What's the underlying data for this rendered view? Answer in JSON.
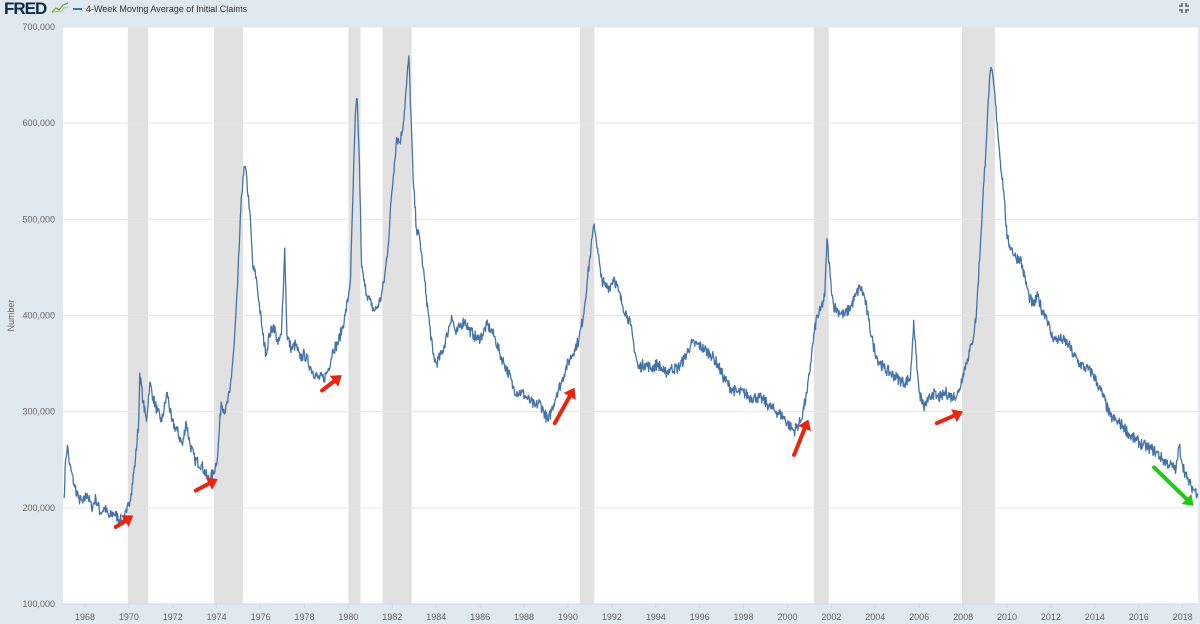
{
  "header": {
    "logo": "FRED",
    "legend_label": "4-Week Moving Average of Initial Claims"
  },
  "colors": {
    "series": "#4572a7",
    "recession": "#e1e1e1",
    "plot_bg": "#ffffff",
    "page_bg": "#e1e9f0",
    "arrow_red": "#e8260f",
    "arrow_green": "#22c81a"
  },
  "icons": {
    "fullscreen": "fullscreen-toggle-icon",
    "logo_graph": "logo-graph-icon"
  },
  "chart_data": {
    "type": "line",
    "title": "",
    "xlabel": "",
    "ylabel": "Number",
    "xlim": [
      1967.0,
      2018.7
    ],
    "ylim": [
      100000,
      700000
    ],
    "y_ticks": [
      100000,
      200000,
      300000,
      400000,
      500000,
      600000,
      700000
    ],
    "y_tick_labels": [
      "100,000",
      "200,000",
      "300,000",
      "400,000",
      "500,000",
      "600,000",
      "700,000"
    ],
    "x_ticks": [
      1968,
      1970,
      1972,
      1974,
      1976,
      1978,
      1980,
      1982,
      1984,
      1986,
      1988,
      1990,
      1992,
      1994,
      1996,
      1998,
      2000,
      2002,
      2004,
      2006,
      2008,
      2010,
      2012,
      2014,
      2016,
      2018
    ],
    "x_tick_labels": [
      "1968",
      "1970",
      "1972",
      "1974",
      "1976",
      "1978",
      "1980",
      "1982",
      "1984",
      "1986",
      "1988",
      "1990",
      "1992",
      "1994",
      "1996",
      "1998",
      "2000",
      "2002",
      "2004",
      "2006",
      "2008",
      "2010",
      "2012",
      "2014",
      "2016",
      "2018"
    ],
    "grid": "horizontal",
    "recessions": [
      [
        1969.95,
        1970.88
      ],
      [
        1973.88,
        1975.2
      ],
      [
        1980.0,
        1980.55
      ],
      [
        1981.55,
        1982.88
      ],
      [
        1990.55,
        1991.2
      ],
      [
        2001.2,
        2001.88
      ],
      [
        2007.95,
        2009.45
      ]
    ],
    "series": [
      {
        "values": [
          [
            1967.05,
            210000
          ],
          [
            1967.12,
            250000
          ],
          [
            1967.2,
            265000
          ],
          [
            1967.3,
            245000
          ],
          [
            1967.5,
            225000
          ],
          [
            1967.7,
            210000
          ],
          [
            1967.9,
            205000
          ],
          [
            1968.1,
            215000
          ],
          [
            1968.3,
            200000
          ],
          [
            1968.5,
            210000
          ],
          [
            1968.7,
            195000
          ],
          [
            1968.9,
            200000
          ],
          [
            1969.1,
            190000
          ],
          [
            1969.3,
            195000
          ],
          [
            1969.5,
            190000
          ],
          [
            1969.7,
            185000
          ],
          [
            1969.9,
            195000
          ],
          [
            1970.1,
            215000
          ],
          [
            1970.3,
            250000
          ],
          [
            1970.45,
            290000
          ],
          [
            1970.5,
            340000
          ],
          [
            1970.65,
            310000
          ],
          [
            1970.8,
            290000
          ],
          [
            1970.95,
            330000
          ],
          [
            1971.1,
            315000
          ],
          [
            1971.3,
            300000
          ],
          [
            1971.5,
            290000
          ],
          [
            1971.75,
            320000
          ],
          [
            1971.95,
            290000
          ],
          [
            1972.2,
            280000
          ],
          [
            1972.45,
            265000
          ],
          [
            1972.6,
            290000
          ],
          [
            1972.8,
            265000
          ],
          [
            1973.0,
            250000
          ],
          [
            1973.3,
            245000
          ],
          [
            1973.6,
            230000
          ],
          [
            1973.85,
            235000
          ],
          [
            1974.05,
            255000
          ],
          [
            1974.2,
            310000
          ],
          [
            1974.4,
            300000
          ],
          [
            1974.6,
            320000
          ],
          [
            1974.8,
            370000
          ],
          [
            1974.95,
            430000
          ],
          [
            1975.1,
            510000
          ],
          [
            1975.2,
            545000
          ],
          [
            1975.3,
            555000
          ],
          [
            1975.5,
            510000
          ],
          [
            1975.65,
            450000
          ],
          [
            1975.8,
            440000
          ],
          [
            1975.95,
            410000
          ],
          [
            1976.1,
            380000
          ],
          [
            1976.25,
            360000
          ],
          [
            1976.4,
            380000
          ],
          [
            1976.6,
            390000
          ],
          [
            1976.8,
            370000
          ],
          [
            1976.95,
            380000
          ],
          [
            1977.1,
            470000
          ],
          [
            1977.2,
            380000
          ],
          [
            1977.4,
            365000
          ],
          [
            1977.6,
            370000
          ],
          [
            1977.8,
            355000
          ],
          [
            1978.0,
            360000
          ],
          [
            1978.3,
            345000
          ],
          [
            1978.6,
            335000
          ],
          [
            1978.9,
            335000
          ],
          [
            1979.1,
            345000
          ],
          [
            1979.3,
            365000
          ],
          [
            1979.5,
            370000
          ],
          [
            1979.7,
            385000
          ],
          [
            1979.85,
            400000
          ],
          [
            1980.0,
            420000
          ],
          [
            1980.1,
            440000
          ],
          [
            1980.2,
            520000
          ],
          [
            1980.32,
            610000
          ],
          [
            1980.4,
            625000
          ],
          [
            1980.5,
            560000
          ],
          [
            1980.6,
            450000
          ],
          [
            1980.75,
            430000
          ],
          [
            1980.9,
            420000
          ],
          [
            1981.05,
            410000
          ],
          [
            1981.2,
            405000
          ],
          [
            1981.35,
            410000
          ],
          [
            1981.5,
            420000
          ],
          [
            1981.65,
            440000
          ],
          [
            1981.8,
            470000
          ],
          [
            1981.95,
            520000
          ],
          [
            1982.1,
            560000
          ],
          [
            1982.2,
            585000
          ],
          [
            1982.35,
            580000
          ],
          [
            1982.5,
            600000
          ],
          [
            1982.65,
            640000
          ],
          [
            1982.75,
            670000
          ],
          [
            1982.85,
            610000
          ],
          [
            1982.95,
            540000
          ],
          [
            1983.1,
            490000
          ],
          [
            1983.25,
            480000
          ],
          [
            1983.4,
            450000
          ],
          [
            1983.55,
            420000
          ],
          [
            1983.7,
            390000
          ],
          [
            1983.85,
            360000
          ],
          [
            1984.0,
            350000
          ],
          [
            1984.25,
            360000
          ],
          [
            1984.5,
            380000
          ],
          [
            1984.7,
            400000
          ],
          [
            1984.9,
            380000
          ],
          [
            1985.1,
            390000
          ],
          [
            1985.3,
            395000
          ],
          [
            1985.5,
            385000
          ],
          [
            1985.7,
            380000
          ],
          [
            1985.9,
            375000
          ],
          [
            1986.1,
            380000
          ],
          [
            1986.3,
            390000
          ],
          [
            1986.5,
            385000
          ],
          [
            1986.7,
            375000
          ],
          [
            1986.9,
            360000
          ],
          [
            1987.1,
            350000
          ],
          [
            1987.3,
            340000
          ],
          [
            1987.5,
            325000
          ],
          [
            1987.7,
            320000
          ],
          [
            1987.9,
            320000
          ],
          [
            1988.1,
            315000
          ],
          [
            1988.3,
            310000
          ],
          [
            1988.5,
            305000
          ],
          [
            1988.7,
            310000
          ],
          [
            1988.9,
            300000
          ],
          [
            1989.1,
            290000
          ],
          [
            1989.3,
            305000
          ],
          [
            1989.5,
            320000
          ],
          [
            1989.7,
            330000
          ],
          [
            1989.9,
            345000
          ],
          [
            1990.1,
            355000
          ],
          [
            1990.3,
            365000
          ],
          [
            1990.5,
            375000
          ],
          [
            1990.7,
            400000
          ],
          [
            1990.9,
            440000
          ],
          [
            1991.05,
            470000
          ],
          [
            1991.2,
            495000
          ],
          [
            1991.35,
            470000
          ],
          [
            1991.5,
            440000
          ],
          [
            1991.7,
            430000
          ],
          [
            1991.9,
            430000
          ],
          [
            1992.1,
            440000
          ],
          [
            1992.3,
            425000
          ],
          [
            1992.5,
            410000
          ],
          [
            1992.7,
            400000
          ],
          [
            1992.85,
            390000
          ],
          [
            1993.0,
            370000
          ],
          [
            1993.2,
            345000
          ],
          [
            1993.5,
            350000
          ],
          [
            1993.8,
            345000
          ],
          [
            1994.1,
            350000
          ],
          [
            1994.4,
            340000
          ],
          [
            1994.7,
            345000
          ],
          [
            1995.0,
            345000
          ],
          [
            1995.3,
            355000
          ],
          [
            1995.6,
            370000
          ],
          [
            1995.9,
            370000
          ],
          [
            1996.2,
            365000
          ],
          [
            1996.5,
            360000
          ],
          [
            1996.8,
            350000
          ],
          [
            1997.1,
            335000
          ],
          [
            1997.4,
            325000
          ],
          [
            1997.7,
            320000
          ],
          [
            1998.0,
            320000
          ],
          [
            1998.3,
            315000
          ],
          [
            1998.6,
            315000
          ],
          [
            1998.9,
            312000
          ],
          [
            1999.2,
            305000
          ],
          [
            1999.5,
            300000
          ],
          [
            1999.8,
            295000
          ],
          [
            2000.1,
            285000
          ],
          [
            2000.3,
            280000
          ],
          [
            2000.6,
            290000
          ],
          [
            2000.9,
            320000
          ],
          [
            2001.1,
            360000
          ],
          [
            2001.3,
            395000
          ],
          [
            2001.5,
            405000
          ],
          [
            2001.7,
            420000
          ],
          [
            2001.8,
            480000
          ],
          [
            2001.95,
            440000
          ],
          [
            2002.1,
            410000
          ],
          [
            2002.3,
            405000
          ],
          [
            2002.6,
            400000
          ],
          [
            2002.9,
            410000
          ],
          [
            2003.1,
            420000
          ],
          [
            2003.3,
            430000
          ],
          [
            2003.5,
            420000
          ],
          [
            2003.7,
            395000
          ],
          [
            2003.9,
            370000
          ],
          [
            2004.1,
            355000
          ],
          [
            2004.4,
            345000
          ],
          [
            2004.7,
            340000
          ],
          [
            2005.0,
            335000
          ],
          [
            2005.3,
            330000
          ],
          [
            2005.6,
            335000
          ],
          [
            2005.75,
            395000
          ],
          [
            2005.85,
            360000
          ],
          [
            2006.0,
            320000
          ],
          [
            2006.2,
            305000
          ],
          [
            2006.4,
            310000
          ],
          [
            2006.6,
            320000
          ],
          [
            2006.8,
            315000
          ],
          [
            2007.0,
            315000
          ],
          [
            2007.2,
            320000
          ],
          [
            2007.5,
            315000
          ],
          [
            2007.8,
            320000
          ],
          [
            2008.0,
            340000
          ],
          [
            2008.2,
            355000
          ],
          [
            2008.4,
            370000
          ],
          [
            2008.6,
            400000
          ],
          [
            2008.8,
            480000
          ],
          [
            2008.95,
            540000
          ],
          [
            2009.1,
            600000
          ],
          [
            2009.2,
            645000
          ],
          [
            2009.3,
            655000
          ],
          [
            2009.4,
            640000
          ],
          [
            2009.55,
            600000
          ],
          [
            2009.7,
            560000
          ],
          [
            2009.85,
            530000
          ],
          [
            2010.0,
            480000
          ],
          [
            2010.2,
            470000
          ],
          [
            2010.4,
            460000
          ],
          [
            2010.6,
            460000
          ],
          [
            2010.8,
            440000
          ],
          [
            2011.0,
            420000
          ],
          [
            2011.2,
            410000
          ],
          [
            2011.4,
            420000
          ],
          [
            2011.6,
            405000
          ],
          [
            2011.8,
            400000
          ],
          [
            2012.0,
            380000
          ],
          [
            2012.2,
            375000
          ],
          [
            2012.5,
            375000
          ],
          [
            2012.8,
            370000
          ],
          [
            2013.0,
            360000
          ],
          [
            2013.3,
            350000
          ],
          [
            2013.6,
            345000
          ],
          [
            2013.9,
            340000
          ],
          [
            2014.1,
            330000
          ],
          [
            2014.4,
            315000
          ],
          [
            2014.7,
            295000
          ],
          [
            2015.0,
            290000
          ],
          [
            2015.3,
            285000
          ],
          [
            2015.6,
            275000
          ],
          [
            2015.9,
            270000
          ],
          [
            2016.2,
            265000
          ],
          [
            2016.5,
            262000
          ],
          [
            2016.8,
            258000
          ],
          [
            2017.1,
            250000
          ],
          [
            2017.4,
            245000
          ],
          [
            2017.7,
            240000
          ],
          [
            2017.85,
            265000
          ],
          [
            2018.0,
            245000
          ],
          [
            2018.2,
            230000
          ],
          [
            2018.4,
            222000
          ],
          [
            2018.55,
            218000
          ],
          [
            2018.68,
            215000
          ]
        ]
      }
    ],
    "annotations": {
      "red_arrows": [
        {
          "from": [
            1969.4,
            180000
          ],
          "to": [
            1970.2,
            192000
          ]
        },
        {
          "from": [
            1973.05,
            218000
          ],
          "to": [
            1974.05,
            230000
          ]
        },
        {
          "from": [
            1978.8,
            322000
          ],
          "to": [
            1979.7,
            338000
          ]
        },
        {
          "from": [
            1989.4,
            288000
          ],
          "to": [
            1990.3,
            325000
          ]
        },
        {
          "from": [
            2000.3,
            255000
          ],
          "to": [
            2000.95,
            292000
          ]
        },
        {
          "from": [
            2006.8,
            288000
          ],
          "to": [
            2008.0,
            300000
          ]
        }
      ],
      "green_arrows": [
        {
          "from": [
            2016.7,
            242000
          ],
          "to": [
            2018.5,
            202000
          ]
        }
      ]
    }
  }
}
